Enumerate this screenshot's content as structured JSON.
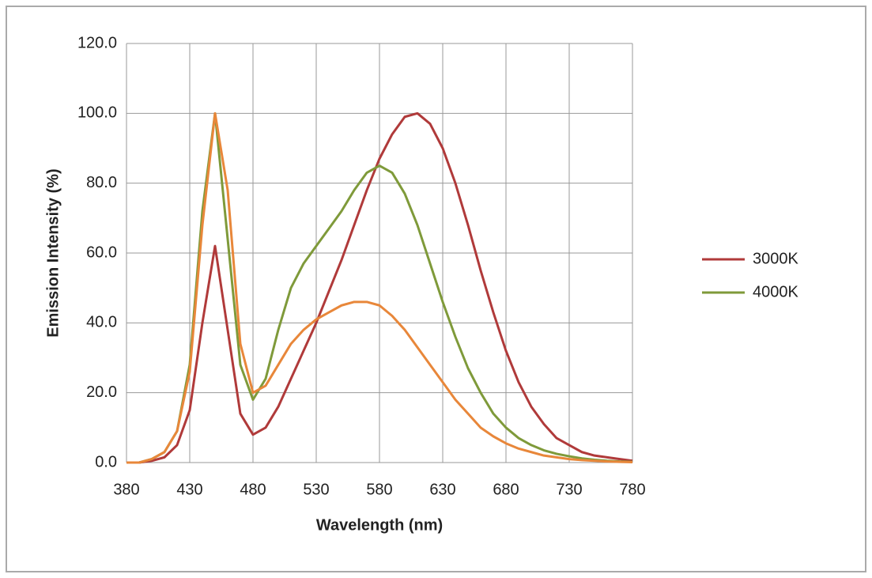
{
  "chart_data": {
    "type": "line",
    "y_label": "Emission Intensity (%)",
    "x_label": "Wavelength (nm)",
    "x": [
      380,
      390,
      400,
      410,
      420,
      430,
      440,
      450,
      460,
      470,
      480,
      490,
      500,
      510,
      520,
      530,
      540,
      550,
      560,
      570,
      580,
      590,
      600,
      610,
      620,
      630,
      640,
      650,
      660,
      670,
      680,
      690,
      700,
      710,
      720,
      730,
      740,
      750,
      760,
      770,
      780
    ],
    "series": [
      {
        "name": "3000K",
        "color": "#b03a3a",
        "values": [
          0,
          0,
          0.5,
          1.5,
          5,
          15,
          40,
          62,
          38,
          14,
          8,
          10,
          16,
          24,
          32,
          40,
          49,
          58,
          68,
          78,
          87,
          94,
          99,
          100,
          97,
          90,
          80,
          68,
          55,
          43,
          32,
          23,
          16,
          11,
          7,
          5,
          3,
          2,
          1.5,
          1,
          0.5
        ]
      },
      {
        "name": "4000K",
        "color": "#7f9a3a",
        "values": [
          0,
          0,
          1,
          3,
          9,
          28,
          72,
          100,
          64,
          28,
          18,
          24,
          38,
          50,
          57,
          62,
          67,
          72,
          78,
          83,
          85,
          83,
          77,
          68,
          57,
          46,
          36,
          27,
          20,
          14,
          10,
          7,
          5,
          3.5,
          2.5,
          1.8,
          1.2,
          0.8,
          0.5,
          0.3,
          0.2
        ]
      },
      {
        "color": "#e8873a",
        "values": [
          0,
          0,
          1,
          3,
          9,
          26,
          68,
          100,
          78,
          34,
          20,
          22,
          28,
          34,
          38,
          41,
          43,
          45,
          46,
          46,
          45,
          42,
          38,
          33,
          28,
          23,
          18,
          14,
          10,
          7.5,
          5.5,
          4,
          3,
          2,
          1.5,
          1,
          0.7,
          0.5,
          0.3,
          0.2,
          0.1
        ]
      }
    ],
    "xlim": [
      380,
      780
    ],
    "xticks": [
      380,
      430,
      480,
      530,
      580,
      630,
      680,
      730,
      780
    ],
    "ylim": [
      0,
      120
    ],
    "yticks": [
      {
        "value": 0,
        "label": "0.0"
      },
      {
        "value": 20,
        "label": "20.0"
      },
      {
        "value": 40,
        "label": "40.0"
      },
      {
        "value": 60,
        "label": "60.0"
      },
      {
        "value": 80,
        "label": "80.0"
      },
      {
        "value": 100,
        "label": "100.0"
      },
      {
        "value": 120,
        "label": "120.0"
      }
    ],
    "grid": true,
    "legend": "right"
  }
}
